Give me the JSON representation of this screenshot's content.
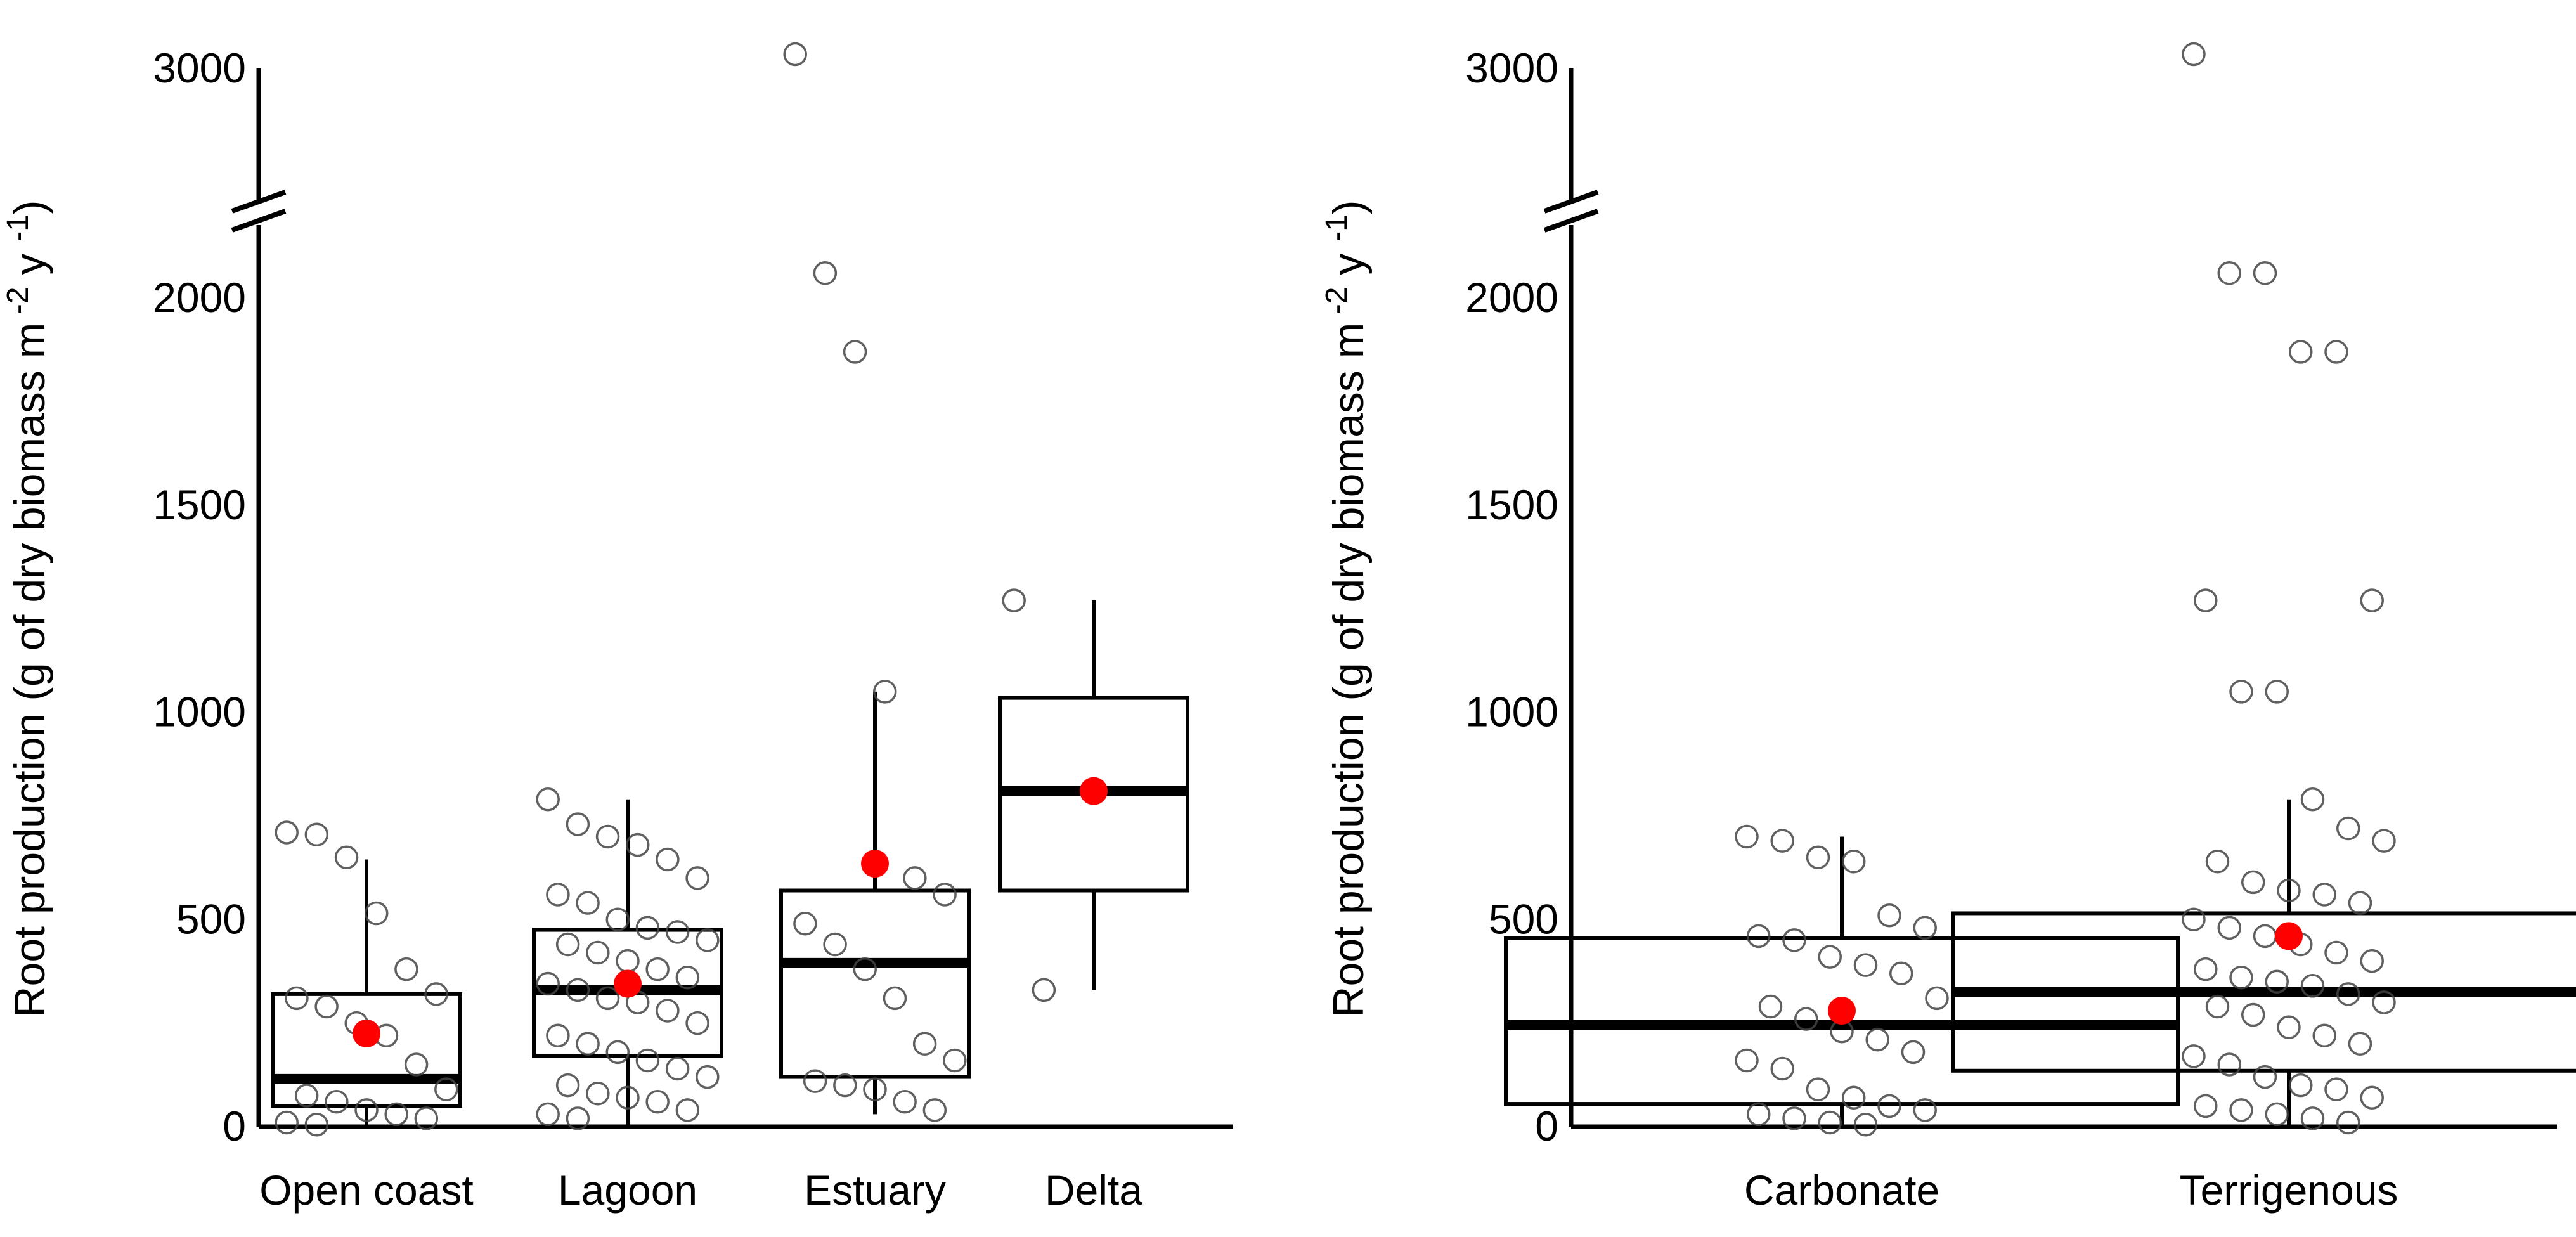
{
  "chart_data": [
    {
      "type": "boxplot",
      "title": "",
      "xlabel": "",
      "ylabel": "Root production (g of dry biomass  m",
      "ylabel_unit_exponents": [
        "-2",
        "y",
        "-1",
        ")"
      ],
      "y_axis_break": [
        2200,
        2800
      ],
      "ylim": [
        0,
        3000
      ],
      "yticks": [
        "0",
        "500",
        "1000",
        "1500",
        "2000",
        "3000"
      ],
      "categories": [
        "Open coast",
        "Lagoon",
        "Estuary",
        "Delta"
      ],
      "series": [
        {
          "name": "Open coast",
          "q1": 50,
          "median": 115,
          "q3": 320,
          "whisker_low": 0,
          "whisker_high": 645,
          "mean": 225,
          "points": [
            710,
            705,
            650,
            515,
            380,
            320,
            310,
            290,
            250,
            220,
            150,
            90,
            75,
            60,
            40,
            30,
            20,
            10,
            5
          ]
        },
        {
          "name": "Lagoon",
          "q1": 170,
          "median": 330,
          "q3": 475,
          "whisker_low": 0,
          "whisker_high": 790,
          "mean": 345,
          "points": [
            790,
            730,
            700,
            680,
            645,
            600,
            560,
            540,
            500,
            480,
            470,
            450,
            440,
            420,
            400,
            380,
            360,
            345,
            330,
            310,
            300,
            280,
            250,
            220,
            200,
            180,
            160,
            140,
            120,
            100,
            80,
            70,
            60,
            40,
            30,
            20
          ]
        },
        {
          "name": "Estuary",
          "q1": 120,
          "median": 395,
          "q3": 570,
          "whisker_low": 30,
          "whisker_high": 1050,
          "mean": 635,
          "points": [
            3050,
            2060,
            1870,
            1050,
            600,
            560,
            490,
            440,
            380,
            310,
            200,
            160,
            110,
            100,
            90,
            60,
            40
          ]
        },
        {
          "name": "Delta",
          "q1": 570,
          "median": 810,
          "q3": 1035,
          "whisker_low": 330,
          "whisker_high": 1270,
          "mean": 810,
          "points": [
            1270,
            330
          ]
        }
      ]
    },
    {
      "type": "boxplot",
      "title": "",
      "xlabel": "",
      "ylabel": "Root production (g of dry biomass  m",
      "ylabel_unit_exponents": [
        "-2",
        "y",
        "-1",
        ")"
      ],
      "y_axis_break": [
        2200,
        2800
      ],
      "ylim": [
        0,
        3000
      ],
      "yticks": [
        "0",
        "500",
        "1000",
        "1500",
        "2000",
        "3000"
      ],
      "categories": [
        "Carbonate",
        "Terrigenous"
      ],
      "series": [
        {
          "name": "Carbonate",
          "q1": 55,
          "median": 245,
          "q3": 455,
          "whisker_low": 0,
          "whisker_high": 700,
          "mean": 280,
          "points": [
            700,
            690,
            650,
            640,
            510,
            480,
            460,
            450,
            410,
            390,
            370,
            310,
            290,
            260,
            230,
            210,
            180,
            160,
            140,
            90,
            70,
            50,
            40,
            30,
            20,
            10,
            5
          ]
        },
        {
          "name": "Terrigenous",
          "q1": 135,
          "median": 325,
          "q3": 515,
          "whisker_low": 0,
          "whisker_high": 790,
          "mean": 460,
          "points": [
            3050,
            2060,
            2060,
            1870,
            1870,
            1270,
            1270,
            1050,
            1050,
            790,
            720,
            690,
            640,
            590,
            570,
            560,
            540,
            500,
            480,
            460,
            440,
            420,
            400,
            380,
            360,
            350,
            340,
            320,
            300,
            290,
            270,
            240,
            220,
            200,
            170,
            150,
            120,
            100,
            90,
            70,
            50,
            40,
            30,
            20,
            10
          ]
        }
      ]
    }
  ]
}
